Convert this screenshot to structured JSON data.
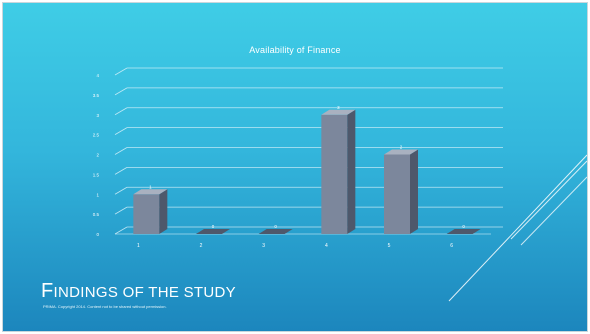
{
  "slide": {
    "title_first": "F",
    "title_rest": "INDINGS OF THE STUDY",
    "footnote": "PRIMA. Copyright 2014. Content not to be shared without permission."
  },
  "chart_data": {
    "type": "bar",
    "title": "Availability of Finance",
    "categories": [
      "1",
      "2",
      "3",
      "4",
      "5",
      "6"
    ],
    "values": [
      1,
      0,
      0,
      3,
      2,
      0
    ],
    "data_labels": [
      "1",
      "0",
      "0",
      "3",
      "2",
      "0"
    ],
    "yticks": [
      0,
      0.5,
      1,
      1.5,
      2,
      2.5,
      3,
      3.5,
      4
    ],
    "ytick_labels": [
      "0",
      "0.5",
      "1",
      "1.5",
      "2",
      "2.5",
      "3",
      "3.5",
      "4"
    ],
    "ylim": [
      0,
      4
    ],
    "grid": true,
    "legend": "none",
    "bar_color": "#7c879c",
    "bar_side_color": "#4e586b",
    "bar_top_color": "#a9b1c0"
  }
}
